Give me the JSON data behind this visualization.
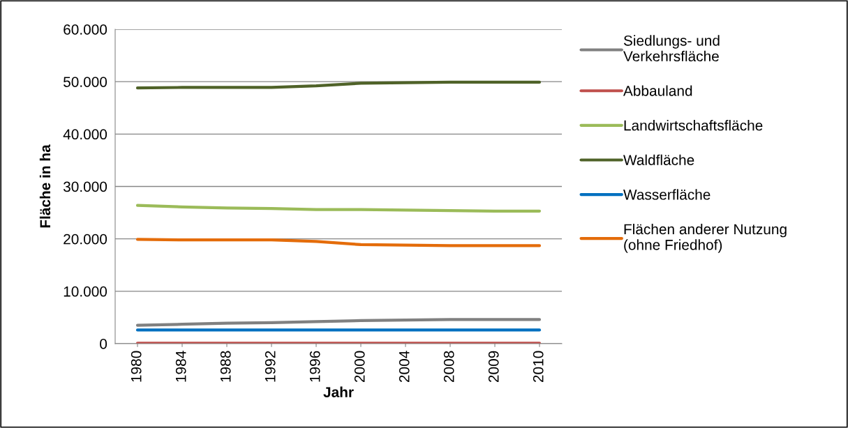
{
  "chart_data": {
    "type": "line",
    "xlabel": "Jahr",
    "ylabel": "Fläche in ha",
    "categories": [
      "1980",
      "1984",
      "1988",
      "1992",
      "1996",
      "2000",
      "2004",
      "2008",
      "2009",
      "2010"
    ],
    "series": [
      {
        "name": "Siedlungs- und\nVerkehrsfläche",
        "color": "#808080",
        "values": [
          3500,
          3700,
          3900,
          4000,
          4200,
          4400,
          4500,
          4600,
          4600,
          4600
        ]
      },
      {
        "name": "Abbauland",
        "color": "#c0504d",
        "values": [
          100,
          100,
          100,
          100,
          100,
          100,
          100,
          100,
          100,
          100
        ]
      },
      {
        "name": "Landwirtschaftsfläche",
        "color": "#9bbb59",
        "values": [
          26400,
          26100,
          25900,
          25800,
          25600,
          25600,
          25500,
          25400,
          25300,
          25300
        ]
      },
      {
        "name": "Waldfläche",
        "color": "#4f6228",
        "values": [
          48800,
          48900,
          48900,
          48900,
          49200,
          49700,
          49800,
          49900,
          49900,
          49900
        ]
      },
      {
        "name": "Wasserfläche",
        "color": "#0070c0",
        "values": [
          2600,
          2600,
          2600,
          2600,
          2600,
          2600,
          2600,
          2600,
          2600,
          2600
        ]
      },
      {
        "name": "Flächen anderer Nutzung\n(ohne Friedhof)",
        "color": "#e46c0a",
        "values": [
          19900,
          19800,
          19800,
          19800,
          19500,
          18900,
          18800,
          18700,
          18700,
          18700
        ]
      }
    ],
    "ylim": [
      0,
      60000
    ],
    "yticks": [
      0,
      {
        "value": 10000,
        "label": "10.000"
      },
      {
        "value": 20000,
        "label": "20.000"
      },
      {
        "value": 30000,
        "label": "30.000"
      },
      {
        "value": 40000,
        "label": "40.000"
      },
      {
        "value": 50000,
        "label": "50.000"
      },
      {
        "value": 60000,
        "label": "60.000"
      }
    ],
    "grid": "y",
    "legend": "right",
    "marker": "none",
    "line_style": "solid"
  }
}
